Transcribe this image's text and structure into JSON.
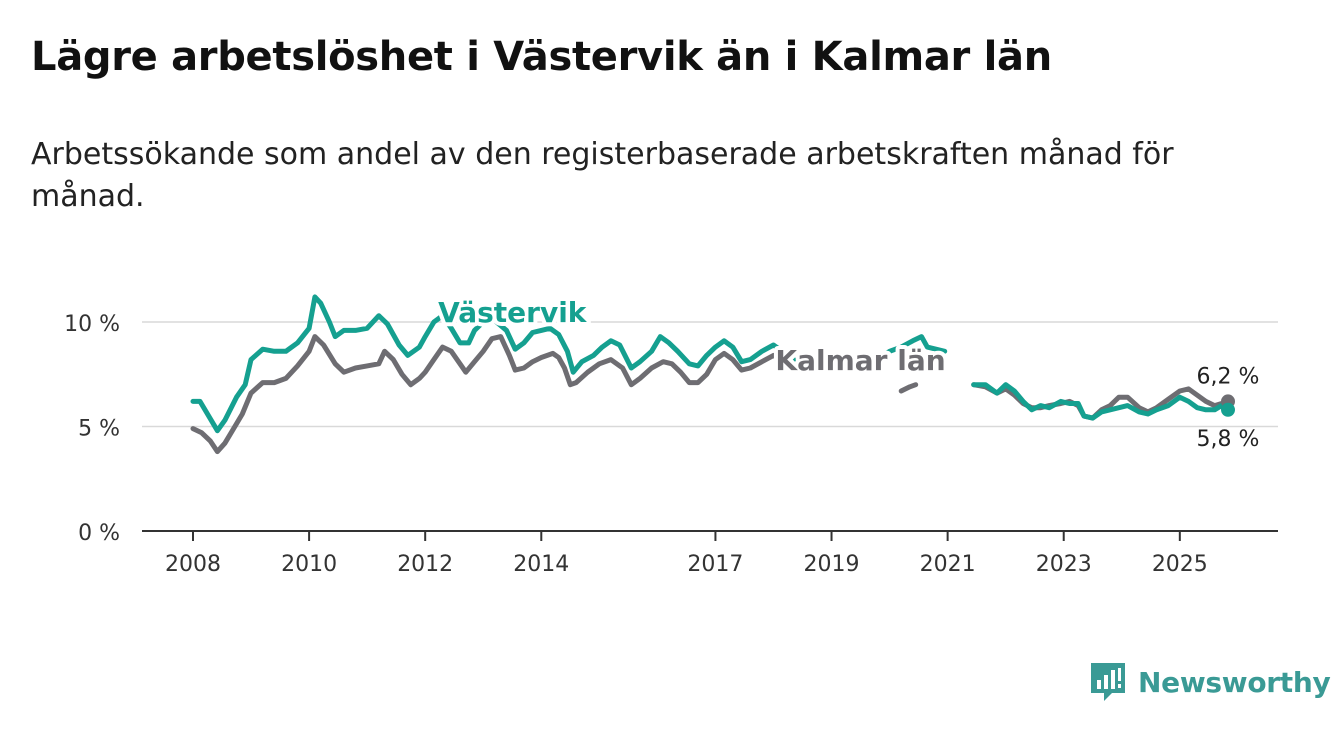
{
  "title": "Lägre arbetslöshet i Västervik än i Kalmar län",
  "subtitle": "Arbetssökande som andel av den registerbaserade arbetskraften månad för månad.",
  "brand": {
    "name": "Newsworthy",
    "icon": "newsworthy-logo-icon",
    "color": "#3a9a95"
  },
  "chart_data": {
    "type": "line",
    "title": "Lägre arbetslöshet i Västervik än i Kalmar län",
    "xlabel": "",
    "ylabel": "",
    "xlim": [
      2008,
      2025.83
    ],
    "ylim": [
      0,
      10
    ],
    "grid": true,
    "y_ticks": [
      {
        "value": 0,
        "label": "0 %"
      },
      {
        "value": 5,
        "label": "5 %"
      },
      {
        "value": 10,
        "label": "10 %"
      }
    ],
    "x_ticks": [
      {
        "value": 2008,
        "label": "2008"
      },
      {
        "value": 2010,
        "label": "2010"
      },
      {
        "value": 2012,
        "label": "2012"
      },
      {
        "value": 2014,
        "label": "2014"
      },
      {
        "value": 2017,
        "label": "2017"
      },
      {
        "value": 2019,
        "label": "2019"
      },
      {
        "value": 2021,
        "label": "2021"
      },
      {
        "value": 2023,
        "label": "2023"
      },
      {
        "value": 2025,
        "label": "2025"
      }
    ],
    "series": [
      {
        "name": "Kalmar län",
        "color": "#6e6d72",
        "label_at": [
          2019.5,
          7.7
        ],
        "end_label": "6,2 %",
        "end_label_side": "above",
        "points": [
          [
            2008,
            4.9
          ],
          [
            2008.15,
            4.7
          ],
          [
            2008.3,
            4.3
          ],
          [
            2008.42,
            3.8
          ],
          [
            2008.55,
            4.2
          ],
          [
            2008.7,
            4.9
          ],
          [
            2008.85,
            5.6
          ],
          [
            2009,
            6.6
          ],
          [
            2009.2,
            7.1
          ],
          [
            2009.4,
            7.1
          ],
          [
            2009.6,
            7.3
          ],
          [
            2009.8,
            7.9
          ],
          [
            2010,
            8.6
          ],
          [
            2010.1,
            9.3
          ],
          [
            2010.25,
            8.9
          ],
          [
            2010.45,
            8.0
          ],
          [
            2010.6,
            7.6
          ],
          [
            2010.8,
            7.8
          ],
          [
            2011,
            7.9
          ],
          [
            2011.2,
            8.0
          ],
          [
            2011.3,
            8.6
          ],
          [
            2011.45,
            8.2
          ],
          [
            2011.6,
            7.5
          ],
          [
            2011.75,
            7.0
          ],
          [
            2011.9,
            7.3
          ],
          [
            2012,
            7.6
          ],
          [
            2012.15,
            8.2
          ],
          [
            2012.3,
            8.8
          ],
          [
            2012.45,
            8.6
          ],
          [
            2012.6,
            8.0
          ],
          [
            2012.7,
            7.6
          ],
          [
            2012.85,
            8.1
          ],
          [
            2013,
            8.6
          ],
          [
            2013.15,
            9.2
          ],
          [
            2013.3,
            9.3
          ],
          [
            2013.45,
            8.4
          ],
          [
            2013.55,
            7.7
          ],
          [
            2013.7,
            7.8
          ],
          [
            2013.85,
            8.1
          ],
          [
            2014,
            8.3
          ],
          [
            2014.2,
            8.5
          ],
          [
            2014.3,
            8.3
          ],
          [
            2014.4,
            7.8
          ],
          [
            2014.5,
            7.0
          ],
          [
            2014.6,
            7.1
          ],
          [
            2014.8,
            7.6
          ],
          [
            2015,
            8.0
          ],
          [
            2015.2,
            8.2
          ],
          [
            2015.4,
            7.8
          ],
          [
            2015.55,
            7.0
          ],
          [
            2015.7,
            7.3
          ],
          [
            2015.9,
            7.8
          ],
          [
            2016.1,
            8.1
          ],
          [
            2016.25,
            8.0
          ],
          [
            2016.4,
            7.6
          ],
          [
            2016.55,
            7.1
          ],
          [
            2016.7,
            7.1
          ],
          [
            2016.85,
            7.5
          ],
          [
            2017,
            8.2
          ],
          [
            2017.15,
            8.5
          ],
          [
            2017.3,
            8.2
          ],
          [
            2017.45,
            7.7
          ],
          [
            2017.6,
            7.8
          ],
          [
            2017.8,
            8.1
          ],
          [
            2018,
            8.4
          ],
          [
            2018.1,
            8.3
          ],
          [
            2018.2,
            8.3
          ],
          [
            2018.3,
            8.0
          ],
          [
            2018.4,
            7.7
          ]
        ]
      },
      {
        "name": "Västervik",
        "color": "#15a090",
        "label_at": [
          2013.5,
          10.0
        ],
        "end_label": "5,8 %",
        "end_label_side": "below",
        "points": [
          [
            2008,
            6.2
          ],
          [
            2008.12,
            6.2
          ],
          [
            2008.25,
            5.6
          ],
          [
            2008.42,
            4.8
          ],
          [
            2008.55,
            5.3
          ],
          [
            2008.75,
            6.4
          ],
          [
            2008.9,
            7.0
          ],
          [
            2009,
            8.2
          ],
          [
            2009.2,
            8.7
          ],
          [
            2009.4,
            8.6
          ],
          [
            2009.6,
            8.6
          ],
          [
            2009.8,
            9.0
          ],
          [
            2010,
            9.7
          ],
          [
            2010.1,
            11.2
          ],
          [
            2010.2,
            10.9
          ],
          [
            2010.35,
            10.0
          ],
          [
            2010.45,
            9.3
          ],
          [
            2010.6,
            9.6
          ],
          [
            2010.8,
            9.6
          ],
          [
            2011,
            9.7
          ],
          [
            2011.2,
            10.3
          ],
          [
            2011.35,
            9.9
          ],
          [
            2011.55,
            8.9
          ],
          [
            2011.7,
            8.4
          ],
          [
            2011.9,
            8.8
          ],
          [
            2012,
            9.3
          ],
          [
            2012.15,
            10.0
          ],
          [
            2012.3,
            10.3
          ],
          [
            2012.45,
            9.7
          ],
          [
            2012.6,
            9.0
          ],
          [
            2012.75,
            9.0
          ],
          [
            2012.85,
            9.6
          ],
          [
            2013,
            10.0
          ],
          [
            2013.1,
            10.3
          ],
          [
            2013.4,
            9.6
          ],
          [
            2013.55,
            8.7
          ],
          [
            2013.7,
            9.0
          ],
          [
            2013.85,
            9.5
          ],
          [
            2014,
            9.6
          ],
          [
            2014.15,
            9.7
          ],
          [
            2014.3,
            9.4
          ],
          [
            2014.45,
            8.6
          ],
          [
            2014.55,
            7.6
          ],
          [
            2014.7,
            8.1
          ],
          [
            2014.9,
            8.4
          ],
          [
            2015.05,
            8.8
          ],
          [
            2015.2,
            9.1
          ],
          [
            2015.35,
            8.9
          ],
          [
            2015.55,
            7.8
          ],
          [
            2015.7,
            8.1
          ],
          [
            2015.9,
            8.6
          ],
          [
            2016.05,
            9.3
          ],
          [
            2016.2,
            9.0
          ],
          [
            2016.35,
            8.6
          ],
          [
            2016.55,
            8.0
          ],
          [
            2016.7,
            7.9
          ],
          [
            2016.85,
            8.4
          ],
          [
            2017,
            8.8
          ],
          [
            2017.15,
            9.1
          ],
          [
            2017.3,
            8.8
          ],
          [
            2017.45,
            8.1
          ],
          [
            2017.6,
            8.2
          ],
          [
            2017.8,
            8.6
          ],
          [
            2018,
            8.9
          ],
          [
            2018.15,
            8.6
          ],
          [
            2018.3,
            8.3
          ],
          [
            2018.45,
            8.0
          ],
          [
            2018.55,
            7.9
          ],
          [
            2019.8,
            8.2
          ],
          [
            2020,
            8.6
          ],
          [
            2020.2,
            8.8
          ],
          [
            2020.4,
            9.1
          ],
          [
            2020.55,
            9.3
          ],
          [
            2020.65,
            8.8
          ],
          [
            2020.8,
            8.7
          ],
          [
            2020.95,
            8.6
          ]
        ]
      },
      {
        "name": "Kalmar län (2019)",
        "color": "#6e6d72",
        "points": [
          [
            2020.2,
            6.7
          ],
          [
            2020.35,
            6.9
          ],
          [
            2020.45,
            7.0
          ]
        ]
      },
      {
        "name": "Kalmar län (2021–2025)",
        "color": "#6e6d72",
        "points": [
          [
            2021.45,
            7.0
          ],
          [
            2021.65,
            6.9
          ],
          [
            2021.85,
            6.6
          ],
          [
            2022,
            6.8
          ],
          [
            2022.15,
            6.5
          ],
          [
            2022.3,
            6.1
          ],
          [
            2022.45,
            5.9
          ],
          [
            2022.6,
            5.9
          ],
          [
            2022.75,
            6.0
          ],
          [
            2022.95,
            6.1
          ],
          [
            2023.1,
            6.2
          ],
          [
            2023.25,
            6.0
          ],
          [
            2023.35,
            5.5
          ],
          [
            2023.5,
            5.4
          ],
          [
            2023.65,
            5.8
          ],
          [
            2023.8,
            6.0
          ],
          [
            2023.95,
            6.4
          ],
          [
            2024.1,
            6.4
          ],
          [
            2024.3,
            5.9
          ],
          [
            2024.45,
            5.7
          ],
          [
            2024.6,
            5.9
          ],
          [
            2024.8,
            6.3
          ],
          [
            2025,
            6.7
          ],
          [
            2025.15,
            6.8
          ],
          [
            2025.3,
            6.5
          ],
          [
            2025.45,
            6.2
          ],
          [
            2025.6,
            6.0
          ],
          [
            2025.72,
            6.1
          ],
          [
            2025.83,
            6.2
          ]
        ]
      },
      {
        "name": "Västervik (2021–2025)",
        "color": "#15a090",
        "points": [
          [
            2021.45,
            7.0
          ],
          [
            2021.65,
            7.0
          ],
          [
            2021.85,
            6.6
          ],
          [
            2022,
            7.0
          ],
          [
            2022.15,
            6.7
          ],
          [
            2022.3,
            6.2
          ],
          [
            2022.45,
            5.8
          ],
          [
            2022.6,
            6.0
          ],
          [
            2022.75,
            5.9
          ],
          [
            2022.95,
            6.2
          ],
          [
            2023.1,
            6.1
          ],
          [
            2023.25,
            6.1
          ],
          [
            2023.35,
            5.5
          ],
          [
            2023.5,
            5.4
          ],
          [
            2023.65,
            5.7
          ],
          [
            2023.8,
            5.8
          ],
          [
            2023.95,
            5.9
          ],
          [
            2024.1,
            6.0
          ],
          [
            2024.3,
            5.7
          ],
          [
            2024.45,
            5.6
          ],
          [
            2024.6,
            5.8
          ],
          [
            2024.8,
            6.0
          ],
          [
            2025,
            6.4
          ],
          [
            2025.15,
            6.2
          ],
          [
            2025.3,
            5.9
          ],
          [
            2025.45,
            5.8
          ],
          [
            2025.6,
            5.8
          ],
          [
            2025.72,
            6.0
          ],
          [
            2025.83,
            5.8
          ]
        ]
      }
    ]
  }
}
